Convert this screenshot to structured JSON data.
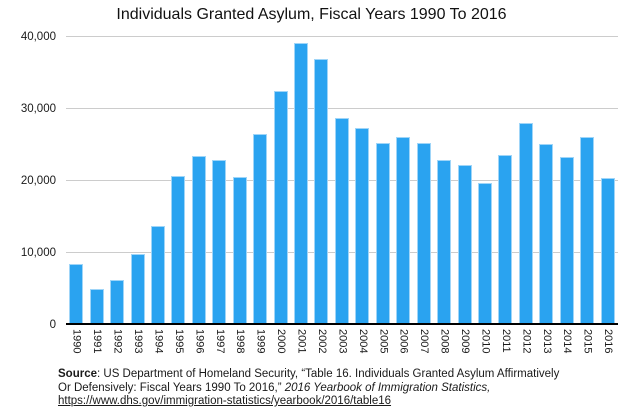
{
  "chart_data": {
    "type": "bar",
    "title": "Individuals Granted Asylum, Fiscal Years 1990 To 2016",
    "xlabel": "",
    "ylabel": "",
    "categories": [
      "1990",
      "1991",
      "1992",
      "1993",
      "1994",
      "1995",
      "1996",
      "1997",
      "1998",
      "1999",
      "2000",
      "2001",
      "2002",
      "2003",
      "2004",
      "2005",
      "2006",
      "2007",
      "2008",
      "2009",
      "2010",
      "2011",
      "2012",
      "2013",
      "2014",
      "2015",
      "2016"
    ],
    "values": [
      8472,
      5035,
      6307,
      9837,
      13798,
      20646,
      23533,
      22939,
      20496,
      26578,
      32477,
      39215,
      36894,
      28714,
      27321,
      25257,
      26113,
      25270,
      22930,
      22219,
      19766,
      23669,
      28116,
      25199,
      23374,
      26124,
      20455
    ],
    "ylim": [
      0,
      40000
    ],
    "yticks": [
      0,
      10000,
      20000,
      30000,
      40000
    ],
    "ytick_labels": [
      "0",
      "10,000",
      "20,000",
      "30,000",
      "40,000"
    ],
    "grid": true,
    "legend": "none",
    "bar_color": "#2aa3f0"
  },
  "footer": {
    "source_label": "Source",
    "line1_rest": ": US Department of Homeland Security, “Table 16. Individuals Granted Asylum Affirmatively",
    "line2_normal": "Or Defensively: Fiscal Years 1990 To 2016,” ",
    "line2_italic": "2016 Yearbook of Immigration Statistics,",
    "link": "https://www.dhs.gov/immigration-statistics/yearbook/2016/table16"
  }
}
